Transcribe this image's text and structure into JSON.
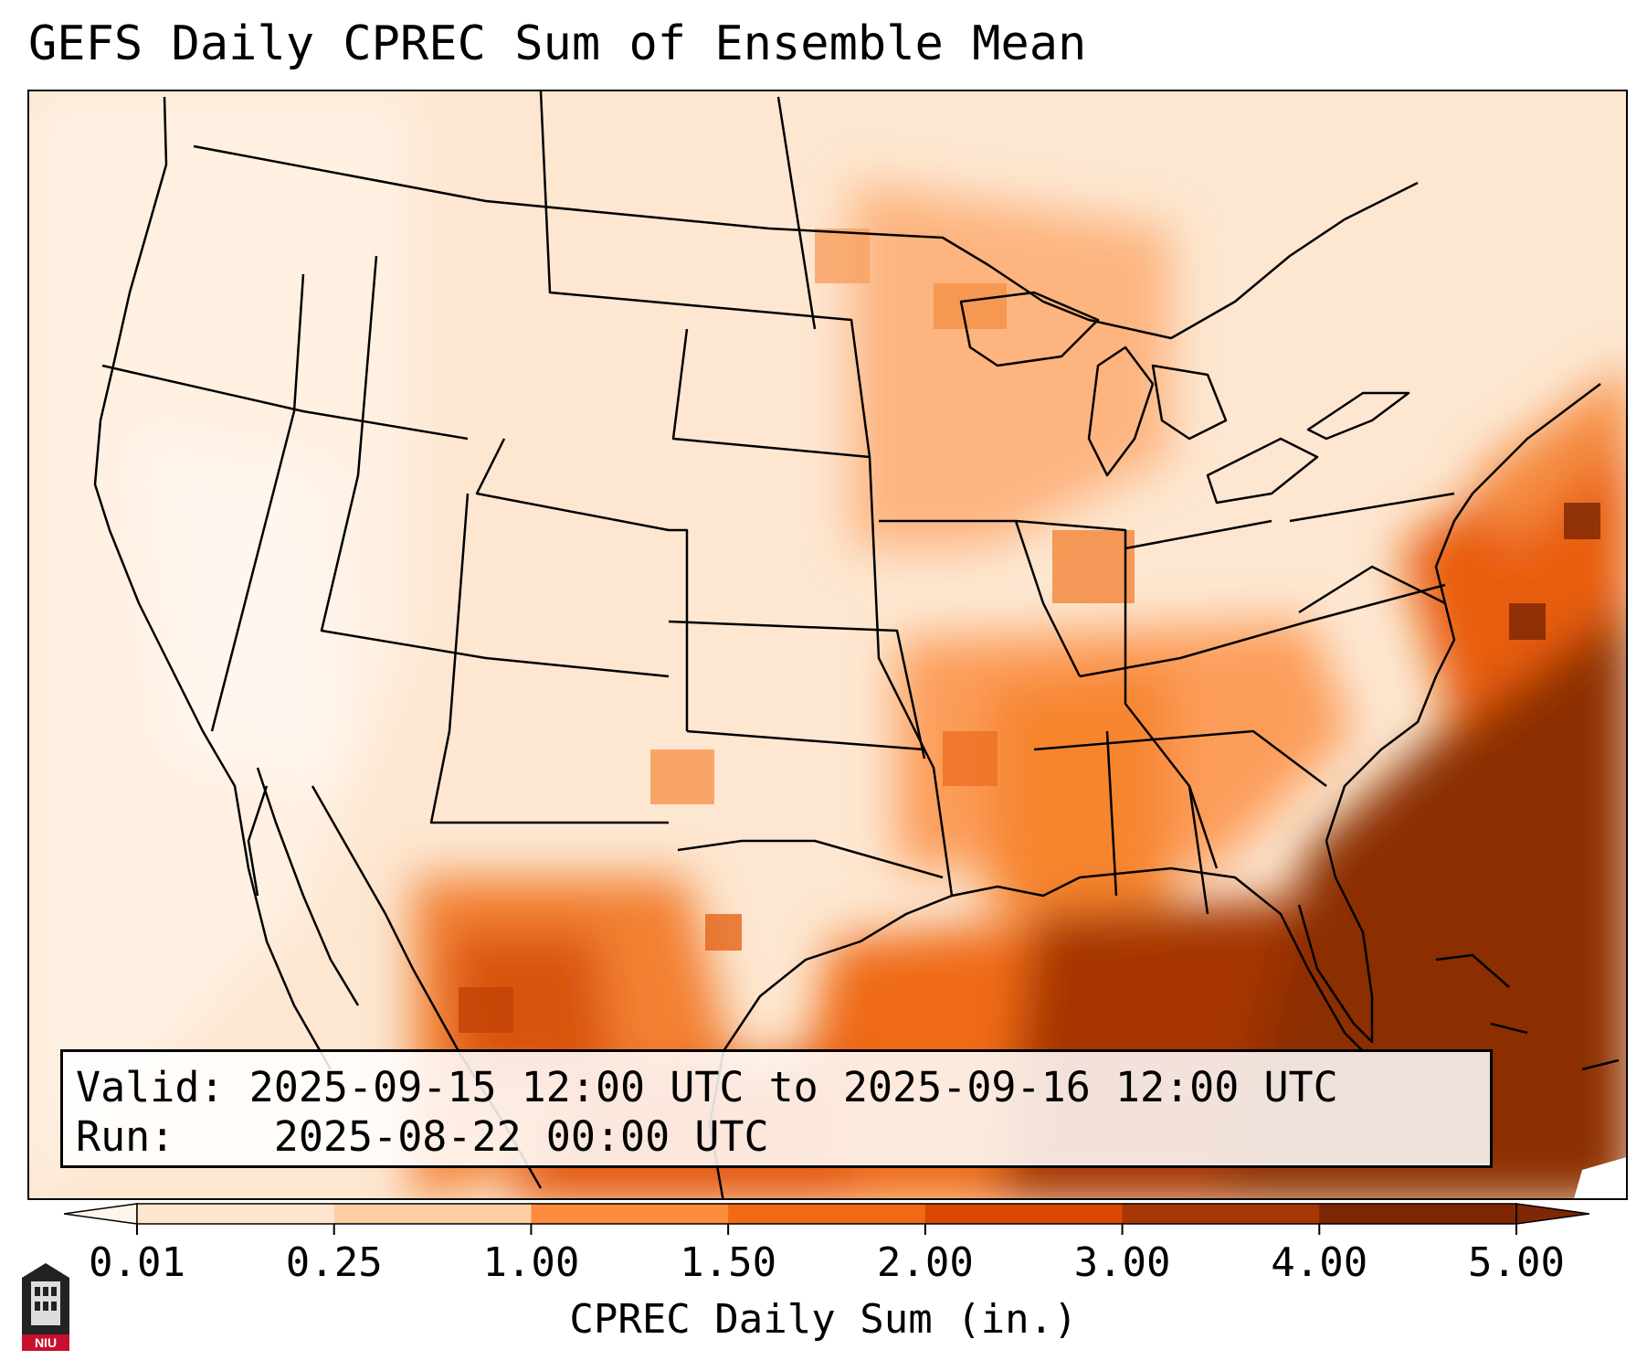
{
  "title": "GEFS Daily CPREC Sum of Ensemble Mean",
  "info": {
    "valid_label": "Valid:",
    "valid_value": "2025-09-15 12:00 UTC to 2025-09-16 12:00 UTC",
    "run_label": "Run:",
    "run_value": "2025-08-22 00:00 UTC"
  },
  "colorbar": {
    "label": "CPREC Daily Sum (in.)",
    "ticks": [
      "0.01",
      "0.25",
      "1.00",
      "1.50",
      "2.00",
      "3.00",
      "4.00",
      "5.00"
    ],
    "colors": [
      "#fff5eb",
      "#fee6ce",
      "#fdd0a2",
      "#fd8d3c",
      "#f16913",
      "#d94801",
      "#a63603",
      "#7f2704"
    ]
  },
  "logo": {
    "text": "NIU",
    "icon": "niu-logo-icon"
  }
}
